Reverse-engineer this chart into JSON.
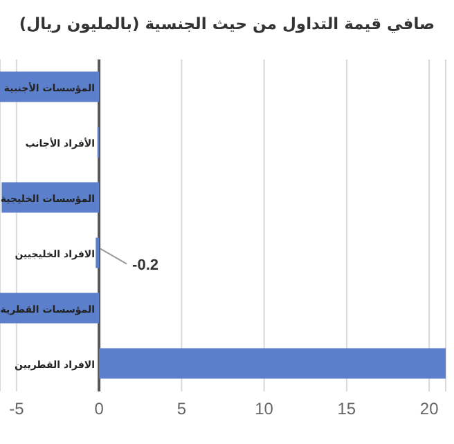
{
  "chart_data": {
    "type": "bar",
    "orientation": "horizontal",
    "title": "صافي قيمة التداول من حيث الجنسية (بالمليون ريال)",
    "categories": [
      "المؤسسات الأجنبية",
      "الأفراد الأجانب",
      "المؤسسات الخليجية",
      "الافراد الخليجيين",
      "المؤسسات القطرية",
      "الافراد القطريين"
    ],
    "values": [
      -6,
      -0.1,
      -5.9,
      -0.2,
      -6,
      21
    ],
    "value_labels": [
      null,
      null,
      null,
      "-0.2",
      null,
      null
    ],
    "color": "#5b7fcb",
    "xlim": [
      -6,
      21
    ],
    "xticks": [
      -5,
      0,
      5,
      10,
      15,
      20
    ],
    "grid": "x"
  }
}
